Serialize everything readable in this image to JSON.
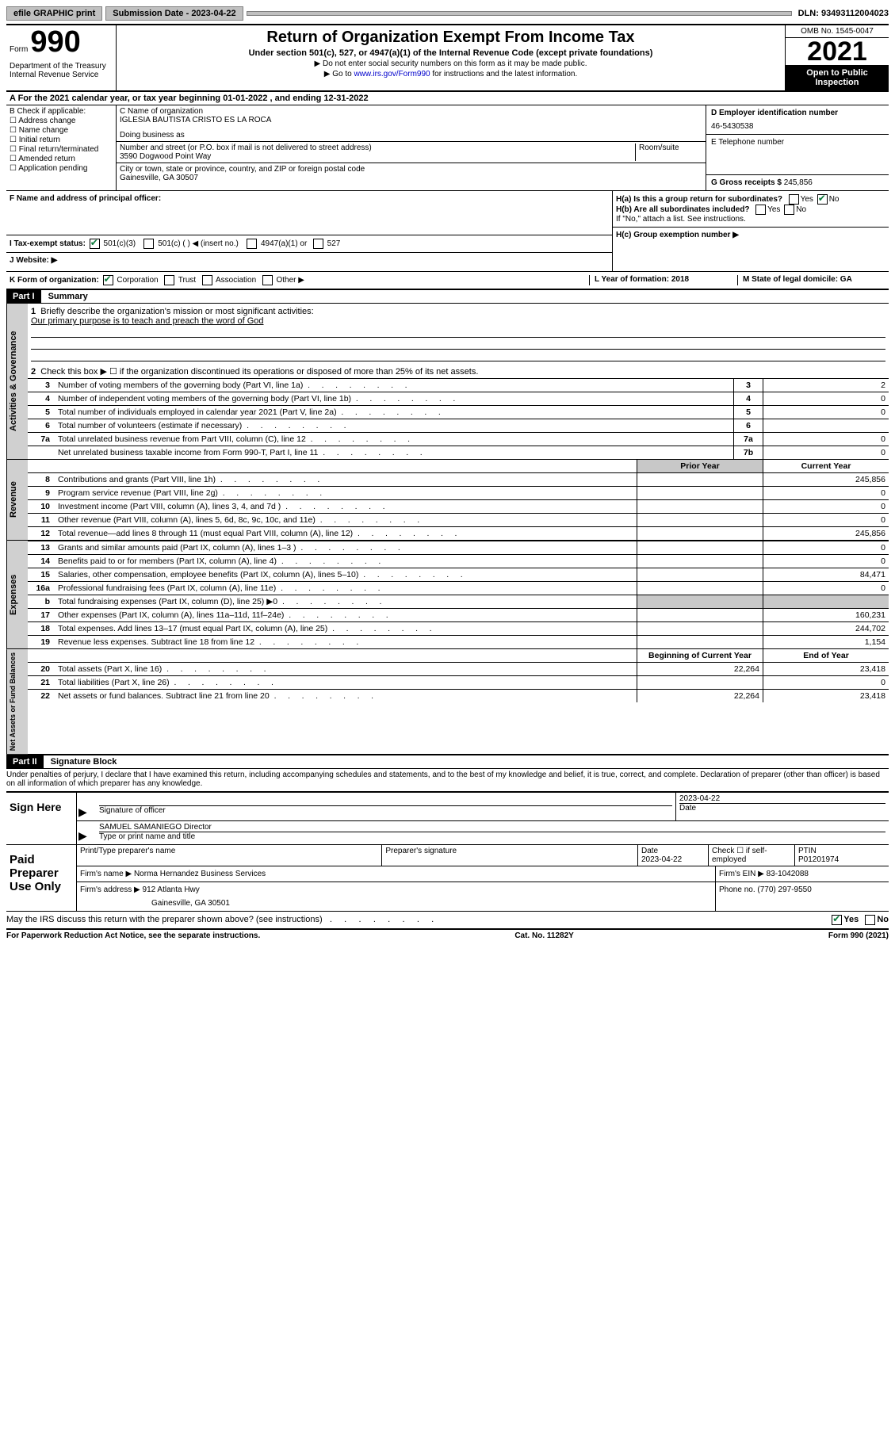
{
  "topbar": {
    "efile": "efile GRAPHIC print",
    "submission_label": "Submission Date - 2023-04-22",
    "dln": "DLN: 93493112004023"
  },
  "header": {
    "form_word": "Form",
    "form_no": "990",
    "dept": "Department of the Treasury\nInternal Revenue Service",
    "title": "Return of Organization Exempt From Income Tax",
    "sub": "Under section 501(c), 527, or 4947(a)(1) of the Internal Revenue Code (except private foundations)",
    "note1": "▶ Do not enter social security numbers on this form as it may be made public.",
    "note2_pre": "▶ Go to ",
    "note2_link": "www.irs.gov/Form990",
    "note2_post": " for instructions and the latest information.",
    "omb": "OMB No. 1545-0047",
    "year": "2021",
    "inspect": "Open to Public Inspection"
  },
  "row_a": "A For the 2021 calendar year, or tax year beginning 01-01-2022   , and ending 12-31-2022",
  "col_b": {
    "label": "B Check if applicable:",
    "items": [
      "Address change",
      "Name change",
      "Initial return",
      "Final return/terminated",
      "Amended return",
      "Application pending"
    ]
  },
  "col_c": {
    "name_label": "C Name of organization",
    "name": "IGLESIA BAUTISTA CRISTO ES LA ROCA",
    "dba_label": "Doing business as",
    "addr_label": "Number and street (or P.O. box if mail is not delivered to street address)",
    "room_label": "Room/suite",
    "addr": "3590 Dogwood Point Way",
    "city_label": "City or town, state or province, country, and ZIP or foreign postal code",
    "city": "Gainesville, GA  30507"
  },
  "col_d": {
    "ein_label": "D Employer identification number",
    "ein": "46-5430538",
    "tel_label": "E Telephone number",
    "gross_label": "G Gross receipts $",
    "gross": "245,856"
  },
  "f_label": "F  Name and address of principal officer:",
  "h": {
    "a": "H(a)  Is this a group return for subordinates?",
    "b": "H(b)  Are all subordinates included?",
    "b_note": "If \"No,\" attach a list. See instructions.",
    "c": "H(c)  Group exemption number ▶",
    "yes": "Yes",
    "no": "No"
  },
  "i": {
    "label": "I   Tax-exempt status:",
    "opts": [
      "501(c)(3)",
      "501(c) (  ) ◀ (insert no.)",
      "4947(a)(1) or",
      "527"
    ]
  },
  "j": "J   Website: ▶",
  "k": {
    "label": "K Form of organization:",
    "opts": [
      "Corporation",
      "Trust",
      "Association",
      "Other ▶"
    ]
  },
  "l": "L Year of formation: 2018",
  "m": "M State of legal domicile: GA",
  "part1": {
    "header": "Part I",
    "title": "Summary",
    "q1": "Briefly describe the organization's mission or most significant activities:",
    "mission": "Our primary purpose is to teach and preach the word of God",
    "q2": "Check this box ▶ ☐  if the organization discontinued its operations or disposed of more than 25% of its net assets.",
    "rows_gov": [
      {
        "n": "3",
        "t": "Number of voting members of the governing body (Part VI, line 1a)",
        "i": "3",
        "v": "2"
      },
      {
        "n": "4",
        "t": "Number of independent voting members of the governing body (Part VI, line 1b)",
        "i": "4",
        "v": "0"
      },
      {
        "n": "5",
        "t": "Total number of individuals employed in calendar year 2021 (Part V, line 2a)",
        "i": "5",
        "v": "0"
      },
      {
        "n": "6",
        "t": "Total number of volunteers (estimate if necessary)",
        "i": "6",
        "v": ""
      },
      {
        "n": "7a",
        "t": "Total unrelated business revenue from Part VIII, column (C), line 12",
        "i": "7a",
        "v": "0"
      },
      {
        "n": "",
        "t": "Net unrelated business taxable income from Form 990-T, Part I, line 11",
        "i": "7b",
        "v": "0"
      }
    ],
    "py_label": "Prior Year",
    "cy_label": "Current Year",
    "rows_rev": [
      {
        "n": "8",
        "t": "Contributions and grants (Part VIII, line 1h)",
        "py": "",
        "cy": "245,856"
      },
      {
        "n": "9",
        "t": "Program service revenue (Part VIII, line 2g)",
        "py": "",
        "cy": "0"
      },
      {
        "n": "10",
        "t": "Investment income (Part VIII, column (A), lines 3, 4, and 7d )",
        "py": "",
        "cy": "0"
      },
      {
        "n": "11",
        "t": "Other revenue (Part VIII, column (A), lines 5, 6d, 8c, 9c, 10c, and 11e)",
        "py": "",
        "cy": "0"
      },
      {
        "n": "12",
        "t": "Total revenue—add lines 8 through 11 (must equal Part VIII, column (A), line 12)",
        "py": "",
        "cy": "245,856"
      }
    ],
    "rows_exp": [
      {
        "n": "13",
        "t": "Grants and similar amounts paid (Part IX, column (A), lines 1–3 )",
        "py": "",
        "cy": "0"
      },
      {
        "n": "14",
        "t": "Benefits paid to or for members (Part IX, column (A), line 4)",
        "py": "",
        "cy": "0"
      },
      {
        "n": "15",
        "t": "Salaries, other compensation, employee benefits (Part IX, column (A), lines 5–10)",
        "py": "",
        "cy": "84,471"
      },
      {
        "n": "16a",
        "t": "Professional fundraising fees (Part IX, column (A), line 11e)",
        "py": "",
        "cy": "0"
      },
      {
        "n": "b",
        "t": "Total fundraising expenses (Part IX, column (D), line 25) ▶0",
        "py": "shade",
        "cy": "shade"
      },
      {
        "n": "17",
        "t": "Other expenses (Part IX, column (A), lines 11a–11d, 11f–24e)",
        "py": "",
        "cy": "160,231"
      },
      {
        "n": "18",
        "t": "Total expenses. Add lines 13–17 (must equal Part IX, column (A), line 25)",
        "py": "",
        "cy": "244,702"
      },
      {
        "n": "19",
        "t": "Revenue less expenses. Subtract line 18 from line 12",
        "py": "",
        "cy": "1,154"
      }
    ],
    "bcy_label": "Beginning of Current Year",
    "eoy_label": "End of Year",
    "rows_net": [
      {
        "n": "20",
        "t": "Total assets (Part X, line 16)",
        "py": "22,264",
        "cy": "23,418"
      },
      {
        "n": "21",
        "t": "Total liabilities (Part X, line 26)",
        "py": "",
        "cy": "0"
      },
      {
        "n": "22",
        "t": "Net assets or fund balances. Subtract line 21 from line 20",
        "py": "22,264",
        "cy": "23,418"
      }
    ]
  },
  "part2": {
    "header": "Part II",
    "title": "Signature Block",
    "decl": "Under penalties of perjury, I declare that I have examined this return, including accompanying schedules and statements, and to the best of my knowledge and belief, it is true, correct, and complete. Declaration of preparer (other than officer) is based on all information of which preparer has any knowledge.",
    "sign_here": "Sign Here",
    "sig_officer": "Signature of officer",
    "date": "Date",
    "date_val": "2023-04-22",
    "name_title": "SAMUEL SAMANIEGO  Director",
    "name_title_label": "Type or print name and title",
    "paid": "Paid Preparer Use Only",
    "prep_name_label": "Print/Type preparer's name",
    "prep_sig_label": "Preparer's signature",
    "prep_date_label": "Date",
    "prep_date": "2023-04-22",
    "check_label": "Check ☐ if self-employed",
    "ptin_label": "PTIN",
    "ptin": "P01201974",
    "firm_name_label": "Firm's name     ▶",
    "firm_name": "Norma Hernandez Business Services",
    "firm_ein_label": "Firm's EIN ▶",
    "firm_ein": "83-1042088",
    "firm_addr_label": "Firm's address ▶",
    "firm_addr1": "912 Atlanta Hwy",
    "firm_addr2": "Gainesville, GA  30501",
    "phone_label": "Phone no.",
    "phone": "(770) 297-9550",
    "discuss": "May the IRS discuss this return with the preparer shown above? (see instructions)",
    "yes": "Yes",
    "no": "No"
  },
  "footer": {
    "left": "For Paperwork Reduction Act Notice, see the separate instructions.",
    "mid": "Cat. No. 11282Y",
    "right": "Form 990 (2021)"
  }
}
